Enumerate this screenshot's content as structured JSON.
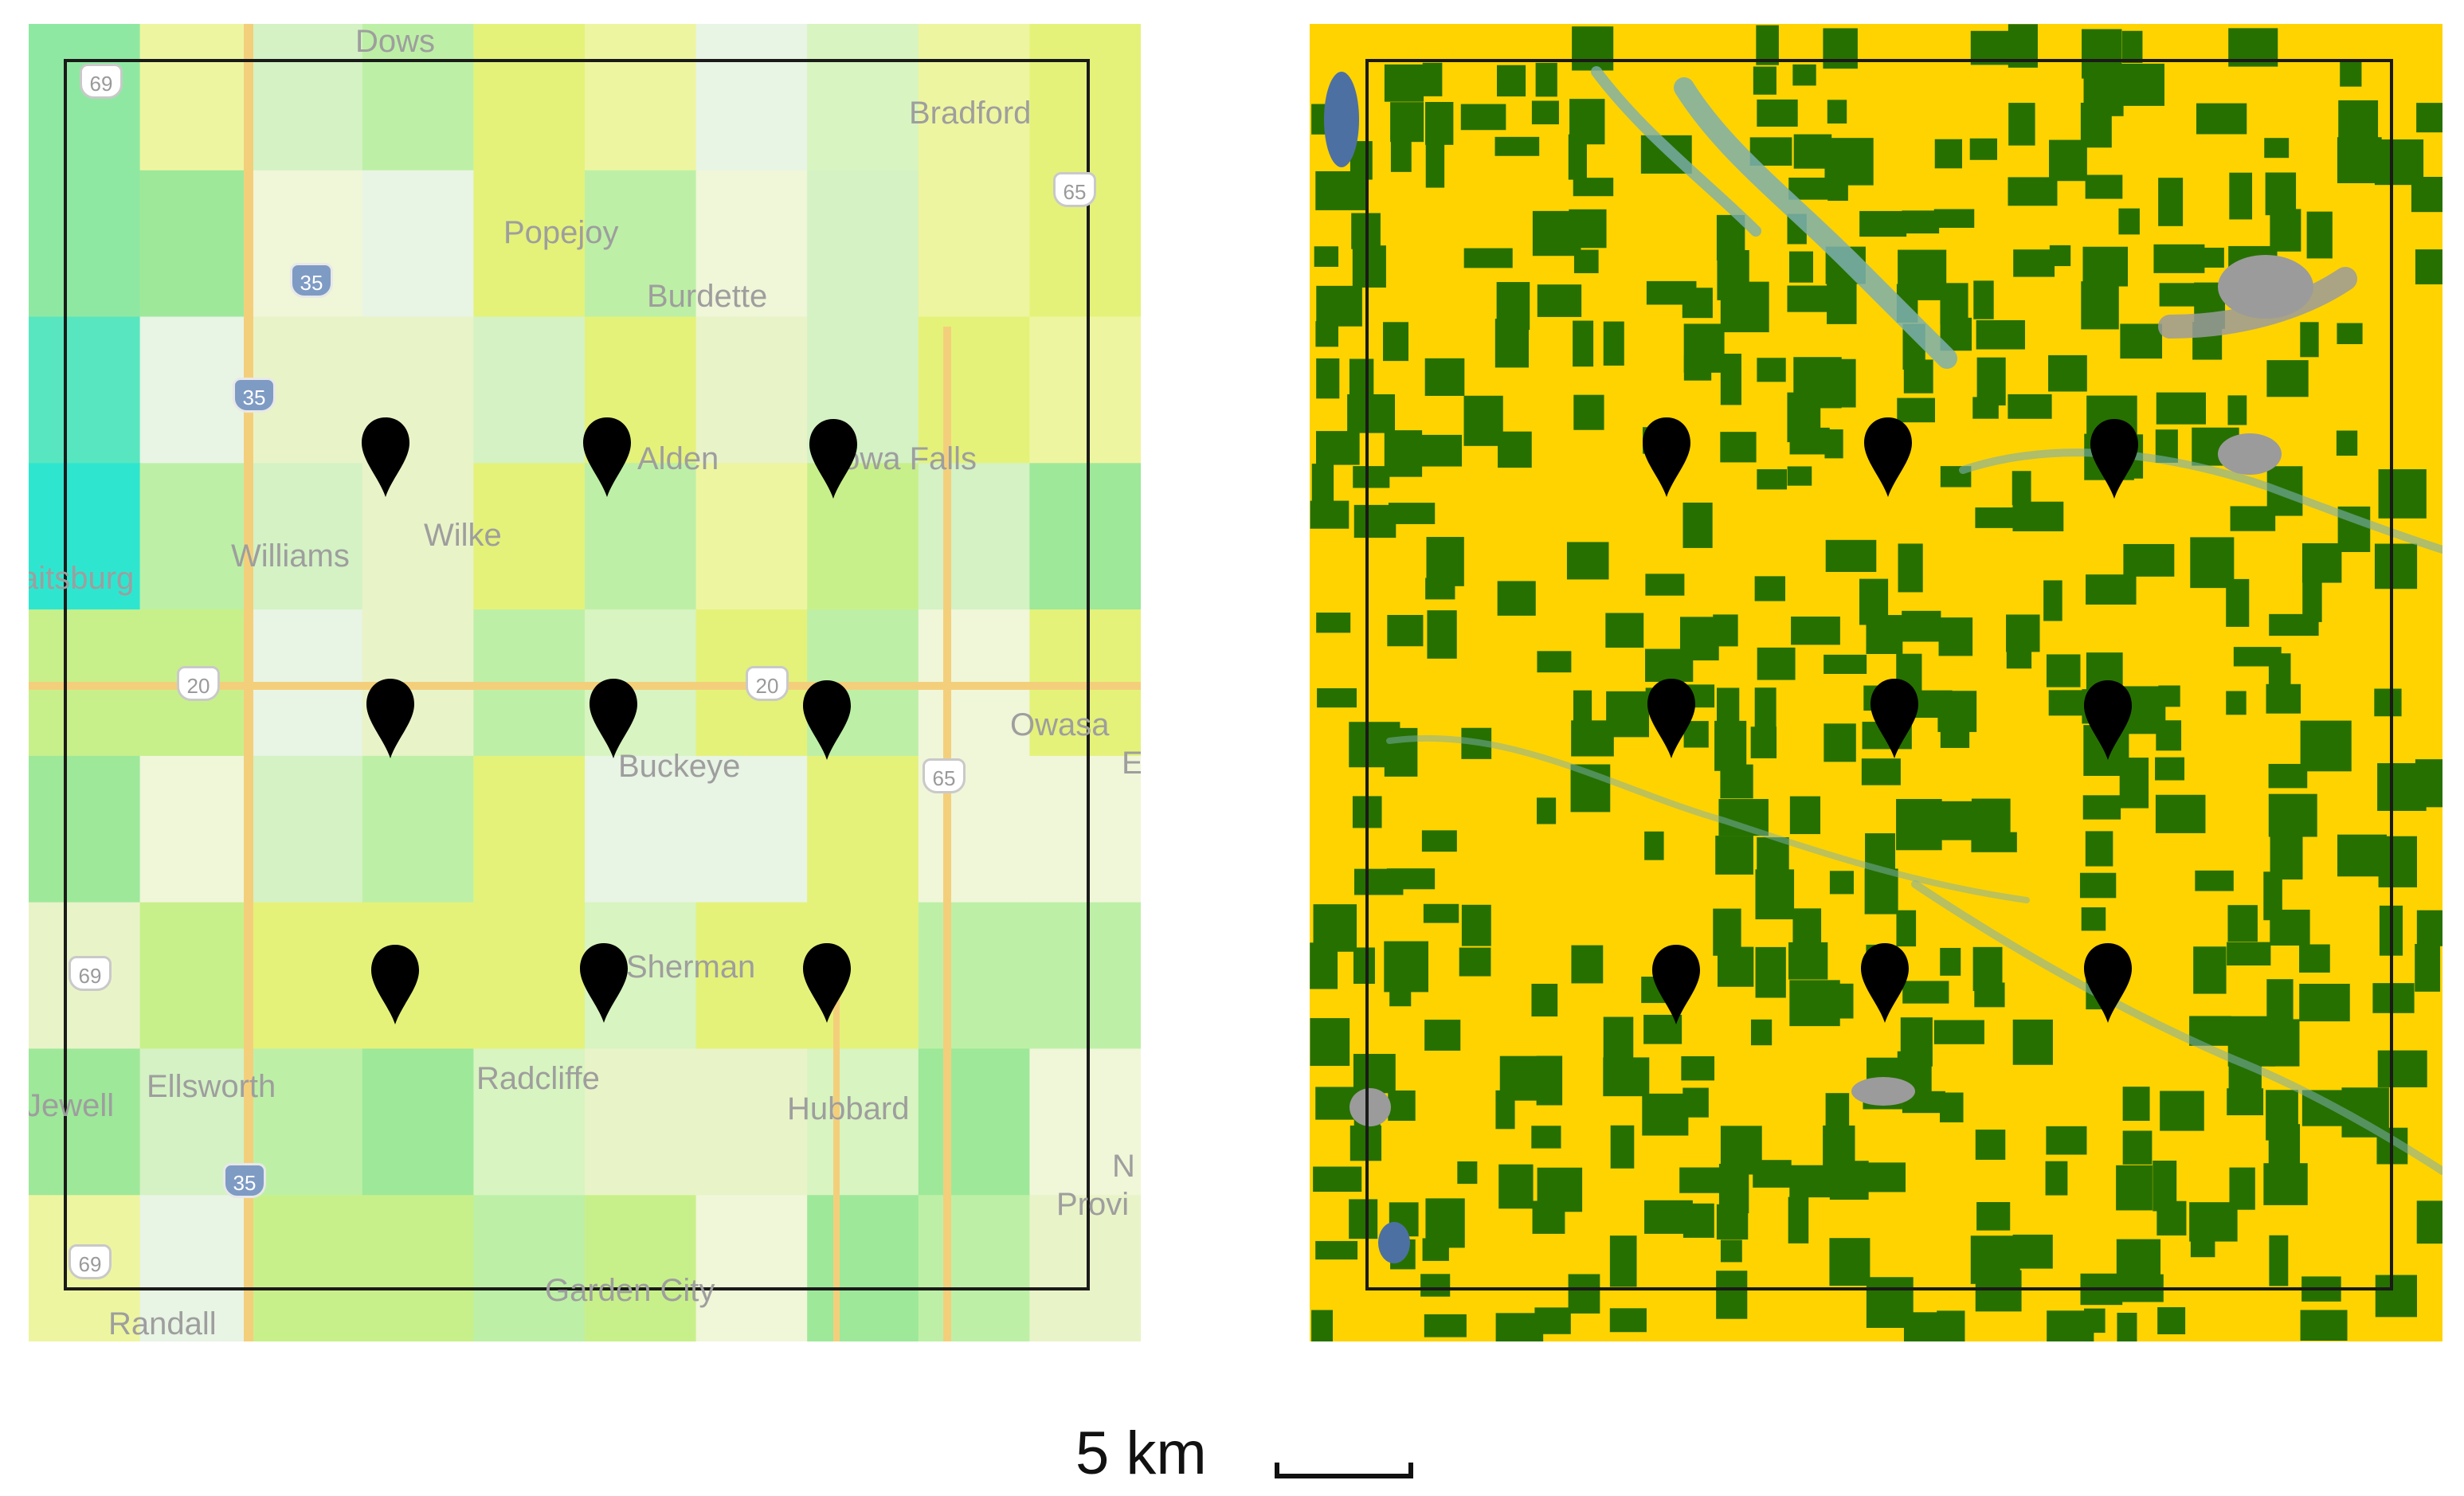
{
  "left_map": {
    "towns": [
      {
        "name": "Dows"
      },
      {
        "name": "Bradford"
      },
      {
        "name": "Popejoy"
      },
      {
        "name": "Burdette"
      },
      {
        "name": "Alden"
      },
      {
        "name": "Iowa Falls"
      },
      {
        "name": "Williams"
      },
      {
        "name": "Wilke"
      },
      {
        "name": "aitsburg"
      },
      {
        "name": "Owasa"
      },
      {
        "name": "E"
      },
      {
        "name": "Buckeye"
      },
      {
        "name": "Sherman"
      },
      {
        "name": "Ellsworth"
      },
      {
        "name": "Jewell"
      },
      {
        "name": "Radcliffe"
      },
      {
        "name": "Hubbard"
      },
      {
        "name": "N"
      },
      {
        "name": "Provi"
      },
      {
        "name": "Garden City"
      },
      {
        "name": "Randall"
      }
    ],
    "shields": [
      {
        "label": "69",
        "type": "state"
      },
      {
        "label": "65",
        "type": "us"
      },
      {
        "label": "35",
        "type": "interstate"
      },
      {
        "label": "35",
        "type": "interstate"
      },
      {
        "label": "20",
        "type": "us"
      },
      {
        "label": "20",
        "type": "us"
      },
      {
        "label": "65",
        "type": "us"
      },
      {
        "label": "69",
        "type": "state"
      },
      {
        "label": "35",
        "type": "interstate"
      },
      {
        "label": "69",
        "type": "state"
      }
    ],
    "marker_count": 9
  },
  "right_map": {
    "marker_count": 9,
    "colors": {
      "corn": "#ffd300",
      "soy": "#267000",
      "water": "#4d70a3",
      "developed": "#9b9b9b",
      "wetland": "#7cafaf"
    }
  },
  "scale_bar": {
    "label": "5 km"
  },
  "colors": {
    "marker": "#000000",
    "frame": "#1a1a1a"
  }
}
